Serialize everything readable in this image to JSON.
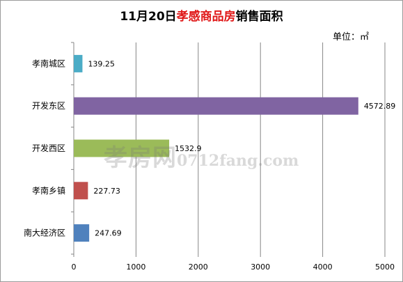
{
  "title": {
    "prefix": "11月20日",
    "highlight": "孝感商品房",
    "suffix": "销售面积"
  },
  "unit_label": "单位：㎡",
  "watermark": {
    "brand": "孝房网",
    "domain": "0712fang.com"
  },
  "colors": {
    "孝南城区": "#4bacc6",
    "开发东区": "#8064a2",
    "开发西区": "#9bbb59",
    "孝南乡镇": "#c0504d",
    "南大经济区": "#4f81bd",
    "grid": "#868686",
    "title_highlight": "#e01818"
  },
  "chart_data": {
    "type": "bar",
    "orientation": "horizontal",
    "title": "11月20日孝感商品房销售面积",
    "unit": "单位：㎡",
    "categories": [
      "孝南城区",
      "开发东区",
      "开发西区",
      "孝南乡镇",
      "南大经济区"
    ],
    "values": [
      139.25,
      4572.89,
      1532.9,
      227.73,
      247.69
    ],
    "value_labels": [
      "139.25",
      "4572.89",
      "1532.9",
      "227.73",
      "247.69"
    ],
    "xlim": [
      0,
      5000
    ],
    "xticks": [
      0,
      1000,
      2000,
      3000,
      4000,
      5000
    ],
    "grid": true,
    "legend": "none"
  }
}
